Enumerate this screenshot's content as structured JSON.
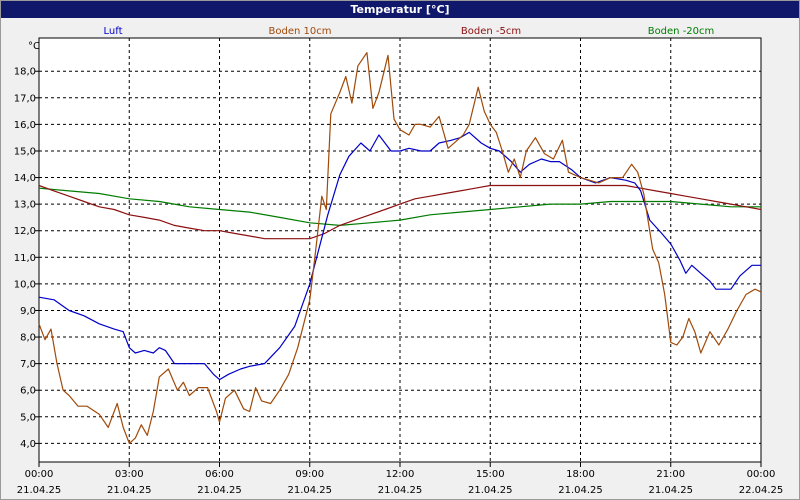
{
  "window": {
    "title": "Temperatur [°C]"
  },
  "chart_data": {
    "type": "line",
    "title": "Temperatur [°C]",
    "ylabel": "°C",
    "ylim": [
      3.3,
      19.25
    ],
    "yticks": [
      "4,0",
      "5,0",
      "6,0",
      "7,0",
      "8,0",
      "9,0",
      "10,0",
      "11,0",
      "12,0",
      "13,0",
      "14,0",
      "15,0",
      "16,0",
      "17,0",
      "18,0"
    ],
    "xlim": [
      0,
      24
    ],
    "xticks": [
      {
        "x": 0,
        "time": "00:00",
        "date": "21.04.25"
      },
      {
        "x": 3,
        "time": "03:00",
        "date": "21.04.25"
      },
      {
        "x": 6,
        "time": "06:00",
        "date": "21.04.25"
      },
      {
        "x": 9,
        "time": "09:00",
        "date": "21.04.25"
      },
      {
        "x": 12,
        "time": "12:00",
        "date": "21.04.25"
      },
      {
        "x": 15,
        "time": "15:00",
        "date": "21.04.25"
      },
      {
        "x": 18,
        "time": "18:00",
        "date": "21.04.25"
      },
      {
        "x": 21,
        "time": "21:00",
        "date": "21.04.25"
      },
      {
        "x": 24,
        "time": "00:00",
        "date": "22.04.25"
      }
    ],
    "grid": true,
    "legend": "top",
    "series": [
      {
        "name": "Luft",
        "color": "#0000c8",
        "points": [
          [
            0,
            9.5
          ],
          [
            0.5,
            9.4
          ],
          [
            1.0,
            9.0
          ],
          [
            1.5,
            8.8
          ],
          [
            2.0,
            8.5
          ],
          [
            2.5,
            8.3
          ],
          [
            2.8,
            8.2
          ],
          [
            3.0,
            7.6
          ],
          [
            3.2,
            7.4
          ],
          [
            3.5,
            7.5
          ],
          [
            3.8,
            7.4
          ],
          [
            4.0,
            7.6
          ],
          [
            4.2,
            7.5
          ],
          [
            4.5,
            7.0
          ],
          [
            5.0,
            7.0
          ],
          [
            5.5,
            7.0
          ],
          [
            5.8,
            6.6
          ],
          [
            6.0,
            6.4
          ],
          [
            6.3,
            6.6
          ],
          [
            6.7,
            6.8
          ],
          [
            7.0,
            6.9
          ],
          [
            7.5,
            7.0
          ],
          [
            8.0,
            7.6
          ],
          [
            8.5,
            8.4
          ],
          [
            9.0,
            10.0
          ],
          [
            9.3,
            11.3
          ],
          [
            9.6,
            12.6
          ],
          [
            10.0,
            14.1
          ],
          [
            10.3,
            14.8
          ],
          [
            10.7,
            15.3
          ],
          [
            11.0,
            15.0
          ],
          [
            11.3,
            15.6
          ],
          [
            11.7,
            15.0
          ],
          [
            12.0,
            15.0
          ],
          [
            12.3,
            15.1
          ],
          [
            12.7,
            15.0
          ],
          [
            13.0,
            15.0
          ],
          [
            13.3,
            15.3
          ],
          [
            13.7,
            15.4
          ],
          [
            14.0,
            15.5
          ],
          [
            14.3,
            15.7
          ],
          [
            14.7,
            15.3
          ],
          [
            15.0,
            15.1
          ],
          [
            15.3,
            15.0
          ],
          [
            15.7,
            14.6
          ],
          [
            16.0,
            14.2
          ],
          [
            16.3,
            14.5
          ],
          [
            16.7,
            14.7
          ],
          [
            17.0,
            14.6
          ],
          [
            17.3,
            14.6
          ],
          [
            17.7,
            14.3
          ],
          [
            18.0,
            14.0
          ],
          [
            18.5,
            13.8
          ],
          [
            19.0,
            14.0
          ],
          [
            19.5,
            13.9
          ],
          [
            19.8,
            13.8
          ],
          [
            20.0,
            13.5
          ],
          [
            20.3,
            12.4
          ],
          [
            20.7,
            11.9
          ],
          [
            21.0,
            11.5
          ],
          [
            21.3,
            10.9
          ],
          [
            21.5,
            10.4
          ],
          [
            21.7,
            10.7
          ],
          [
            22.0,
            10.4
          ],
          [
            22.3,
            10.1
          ],
          [
            22.5,
            9.8
          ],
          [
            23.0,
            9.8
          ],
          [
            23.3,
            10.3
          ],
          [
            23.7,
            10.7
          ],
          [
            24.0,
            10.7
          ]
        ]
      },
      {
        "name": "Boden 10cm",
        "color": "#a04a0a",
        "points": [
          [
            0,
            8.5
          ],
          [
            0.2,
            7.9
          ],
          [
            0.4,
            8.3
          ],
          [
            0.6,
            7.0
          ],
          [
            0.8,
            6.0
          ],
          [
            1.0,
            5.8
          ],
          [
            1.3,
            5.4
          ],
          [
            1.6,
            5.4
          ],
          [
            2.0,
            5.1
          ],
          [
            2.3,
            4.6
          ],
          [
            2.6,
            5.5
          ],
          [
            2.8,
            4.6
          ],
          [
            3.0,
            4.0
          ],
          [
            3.2,
            4.2
          ],
          [
            3.4,
            4.7
          ],
          [
            3.6,
            4.3
          ],
          [
            3.8,
            5.2
          ],
          [
            4.0,
            6.5
          ],
          [
            4.3,
            6.8
          ],
          [
            4.6,
            6.0
          ],
          [
            4.8,
            6.3
          ],
          [
            5.0,
            5.8
          ],
          [
            5.3,
            6.1
          ],
          [
            5.6,
            6.1
          ],
          [
            5.9,
            5.2
          ],
          [
            6.0,
            4.8
          ],
          [
            6.2,
            5.7
          ],
          [
            6.5,
            6.0
          ],
          [
            6.8,
            5.3
          ],
          [
            7.0,
            5.2
          ],
          [
            7.2,
            6.1
          ],
          [
            7.4,
            5.6
          ],
          [
            7.7,
            5.5
          ],
          [
            8.0,
            6.0
          ],
          [
            8.3,
            6.6
          ],
          [
            8.6,
            7.6
          ],
          [
            9.0,
            9.4
          ],
          [
            9.2,
            11.3
          ],
          [
            9.4,
            13.3
          ],
          [
            9.55,
            12.8
          ],
          [
            9.7,
            16.4
          ],
          [
            10.0,
            17.2
          ],
          [
            10.2,
            17.8
          ],
          [
            10.4,
            16.8
          ],
          [
            10.6,
            18.2
          ],
          [
            10.9,
            18.7
          ],
          [
            11.1,
            16.6
          ],
          [
            11.3,
            17.2
          ],
          [
            11.6,
            18.6
          ],
          [
            11.8,
            16.2
          ],
          [
            12.0,
            15.8
          ],
          [
            12.3,
            15.6
          ],
          [
            12.5,
            16.0
          ],
          [
            12.7,
            16.0
          ],
          [
            13.0,
            15.9
          ],
          [
            13.3,
            16.3
          ],
          [
            13.6,
            15.1
          ],
          [
            13.9,
            15.4
          ],
          [
            14.1,
            15.6
          ],
          [
            14.3,
            16.0
          ],
          [
            14.6,
            17.4
          ],
          [
            14.8,
            16.5
          ],
          [
            15.0,
            16.0
          ],
          [
            15.2,
            15.7
          ],
          [
            15.4,
            15.0
          ],
          [
            15.6,
            14.2
          ],
          [
            15.8,
            14.7
          ],
          [
            16.0,
            14.0
          ],
          [
            16.2,
            15.0
          ],
          [
            16.5,
            15.5
          ],
          [
            16.8,
            14.9
          ],
          [
            17.1,
            14.7
          ],
          [
            17.4,
            15.4
          ],
          [
            17.6,
            14.2
          ],
          [
            18.0,
            14.0
          ],
          [
            18.3,
            13.9
          ],
          [
            18.6,
            13.8
          ],
          [
            19.0,
            14.0
          ],
          [
            19.4,
            14.0
          ],
          [
            19.7,
            14.5
          ],
          [
            19.9,
            14.2
          ],
          [
            20.1,
            13.4
          ],
          [
            20.4,
            11.3
          ],
          [
            20.6,
            10.8
          ],
          [
            20.8,
            9.6
          ],
          [
            21.0,
            7.8
          ],
          [
            21.2,
            7.7
          ],
          [
            21.4,
            8.0
          ],
          [
            21.6,
            8.7
          ],
          [
            21.8,
            8.2
          ],
          [
            22.0,
            7.4
          ],
          [
            22.3,
            8.2
          ],
          [
            22.6,
            7.7
          ],
          [
            22.9,
            8.3
          ],
          [
            23.2,
            9.0
          ],
          [
            23.5,
            9.6
          ],
          [
            23.8,
            9.8
          ],
          [
            24.0,
            9.7
          ]
        ]
      },
      {
        "name": "Boden -5cm",
        "color": "#8c1010",
        "points": [
          [
            0,
            13.7
          ],
          [
            0.5,
            13.5
          ],
          [
            1.0,
            13.3
          ],
          [
            1.5,
            13.1
          ],
          [
            2.0,
            12.9
          ],
          [
            2.5,
            12.8
          ],
          [
            3.0,
            12.6
          ],
          [
            3.5,
            12.5
          ],
          [
            4.0,
            12.4
          ],
          [
            4.5,
            12.2
          ],
          [
            5.0,
            12.1
          ],
          [
            5.5,
            12.0
          ],
          [
            6.0,
            12.0
          ],
          [
            6.5,
            11.9
          ],
          [
            7.0,
            11.8
          ],
          [
            7.5,
            11.7
          ],
          [
            8.0,
            11.7
          ],
          [
            8.5,
            11.7
          ],
          [
            9.0,
            11.7
          ],
          [
            9.5,
            11.9
          ],
          [
            10.0,
            12.2
          ],
          [
            10.5,
            12.4
          ],
          [
            11.0,
            12.6
          ],
          [
            11.5,
            12.8
          ],
          [
            12.0,
            13.0
          ],
          [
            12.5,
            13.2
          ],
          [
            13.0,
            13.3
          ],
          [
            13.5,
            13.4
          ],
          [
            14.0,
            13.5
          ],
          [
            14.5,
            13.6
          ],
          [
            15.0,
            13.7
          ],
          [
            15.5,
            13.7
          ],
          [
            16.0,
            13.7
          ],
          [
            16.5,
            13.7
          ],
          [
            17.0,
            13.7
          ],
          [
            17.5,
            13.7
          ],
          [
            18.0,
            13.7
          ],
          [
            18.5,
            13.7
          ],
          [
            19.0,
            13.7
          ],
          [
            19.5,
            13.7
          ],
          [
            20.0,
            13.6
          ],
          [
            20.5,
            13.5
          ],
          [
            21.0,
            13.4
          ],
          [
            21.5,
            13.3
          ],
          [
            22.0,
            13.2
          ],
          [
            22.5,
            13.1
          ],
          [
            23.0,
            13.0
          ],
          [
            23.5,
            12.9
          ],
          [
            24.0,
            12.8
          ]
        ]
      },
      {
        "name": "Boden -20cm",
        "color": "#007c00",
        "points": [
          [
            0,
            13.6
          ],
          [
            1.0,
            13.5
          ],
          [
            2.0,
            13.4
          ],
          [
            3.0,
            13.2
          ],
          [
            4.0,
            13.1
          ],
          [
            4.5,
            13.0
          ],
          [
            5.0,
            12.9
          ],
          [
            6.0,
            12.8
          ],
          [
            7.0,
            12.7
          ],
          [
            8.0,
            12.5
          ],
          [
            9.0,
            12.3
          ],
          [
            10.0,
            12.2
          ],
          [
            11.0,
            12.3
          ],
          [
            12.0,
            12.4
          ],
          [
            13.0,
            12.6
          ],
          [
            14.0,
            12.7
          ],
          [
            15.0,
            12.8
          ],
          [
            16.0,
            12.9
          ],
          [
            17.0,
            13.0
          ],
          [
            18.0,
            13.0
          ],
          [
            19.0,
            13.1
          ],
          [
            20.0,
            13.1
          ],
          [
            21.0,
            13.1
          ],
          [
            22.0,
            13.0
          ],
          [
            23.0,
            12.9
          ],
          [
            24.0,
            12.9
          ]
        ]
      }
    ]
  }
}
